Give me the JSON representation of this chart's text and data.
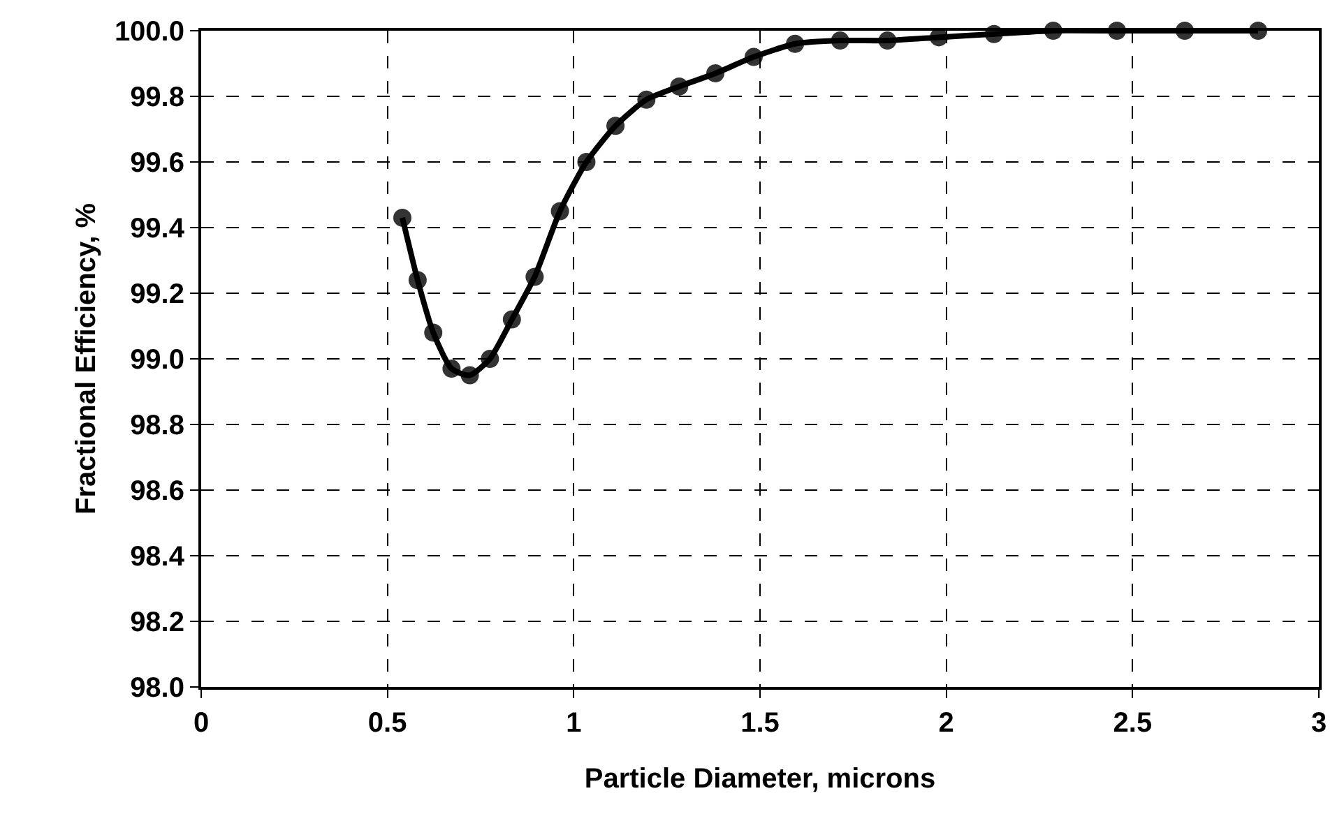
{
  "chart_data": {
    "type": "line",
    "xlabel": "Particle Diameter, microns",
    "ylabel": "Fractional Efficiency, %",
    "series": [
      {
        "color": "#000000",
        "x": [
          0.54,
          0.581,
          0.623,
          0.672,
          0.721,
          0.775,
          0.834,
          0.895,
          0.963,
          1.034,
          1.112,
          1.195,
          1.283,
          1.38,
          1.483,
          1.594,
          1.715,
          1.842,
          1.98,
          2.128,
          2.287,
          2.458,
          2.64,
          2.837
        ],
        "values": [
          99.43,
          99.24,
          99.08,
          98.97,
          98.95,
          99.0,
          99.12,
          99.25,
          99.45,
          99.6,
          99.71,
          99.79,
          99.83,
          99.87,
          99.92,
          99.96,
          99.97,
          99.97,
          99.98,
          99.99,
          100.0,
          100.0,
          100.0,
          100.0
        ]
      }
    ],
    "xlim": [
      0,
      3
    ],
    "xticks": [
      0,
      0.5,
      1,
      1.5,
      2,
      2.5,
      3
    ],
    "ylim": [
      98,
      100
    ],
    "yticks": [
      {
        "value": 98,
        "label": "98.0"
      },
      {
        "value": 98.2,
        "label": "98.2"
      },
      {
        "value": 98.4,
        "label": "98.4"
      },
      {
        "value": 98.6,
        "label": "98.6"
      },
      {
        "value": 98.8,
        "label": "98.8"
      },
      {
        "value": 99,
        "label": "99.0"
      },
      {
        "value": 99.2,
        "label": "99.2"
      },
      {
        "value": 99.4,
        "label": "99.4"
      },
      {
        "value": 99.6,
        "label": "99.6"
      },
      {
        "value": 99.8,
        "label": "99.8"
      },
      {
        "value": 100,
        "label": "100.0"
      }
    ],
    "grid": true,
    "marker": "circle",
    "line_style": "solid"
  }
}
